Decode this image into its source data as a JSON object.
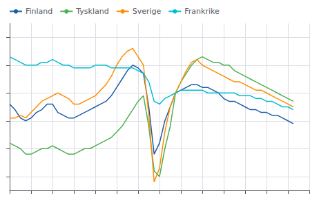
{
  "chart_data": {
    "type": "line",
    "x": [
      2000,
      2000.25,
      2000.5,
      2000.75,
      2001,
      2001.25,
      2001.5,
      2001.75,
      2002,
      2002.25,
      2002.5,
      2002.75,
      2003,
      2003.25,
      2003.5,
      2003.75,
      2004,
      2004.25,
      2004.5,
      2004.75,
      2005,
      2005.25,
      2005.5,
      2005.75,
      2006,
      2006.25,
      2006.5,
      2006.75,
      2007,
      2007.25,
      2007.5,
      2007.75,
      2008,
      2008.25,
      2008.5,
      2008.75,
      2009,
      2009.25,
      2009.5,
      2009.75,
      2010,
      2010.25,
      2010.5,
      2010.75,
      2011,
      2011.25,
      2011.5,
      2011.75,
      2012,
      2012.25,
      2012.5,
      2012.75,
      2013,
      2013.25
    ],
    "series": [
      {
        "name": "Finland",
        "color": "#1a5ca8",
        "values": [
          96,
          94,
          91,
          90,
          91,
          93,
          94,
          96,
          96,
          93,
          92,
          91,
          91,
          92,
          93,
          94,
          95,
          96,
          97,
          99,
          102,
          105,
          108,
          110,
          109,
          107,
          95,
          78,
          82,
          90,
          95,
          100,
          101,
          102,
          103,
          103,
          102,
          102,
          101,
          100,
          98,
          97,
          97,
          96,
          95,
          94,
          94,
          93,
          93,
          92,
          92,
          91,
          90,
          89
        ]
      },
      {
        "name": "Tyskland",
        "color": "#4caf50",
        "values": [
          82,
          81,
          80,
          78,
          78,
          79,
          80,
          80,
          81,
          80,
          79,
          78,
          78,
          79,
          80,
          80,
          81,
          82,
          83,
          84,
          86,
          88,
          91,
          94,
          97,
          99,
          88,
          72,
          70,
          80,
          88,
          100,
          104,
          107,
          110,
          112,
          113,
          112,
          111,
          111,
          110,
          110,
          108,
          107,
          106,
          105,
          104,
          103,
          102,
          101,
          100,
          99,
          98,
          97
        ]
      },
      {
        "name": "Sverige",
        "color": "#ff8c00",
        "values": [
          91,
          91,
          92,
          91,
          93,
          95,
          97,
          98,
          99,
          100,
          99,
          98,
          96,
          96,
          97,
          98,
          99,
          101,
          103,
          106,
          110,
          113,
          115,
          116,
          113,
          110,
          92,
          68,
          73,
          86,
          95,
          100,
          104,
          108,
          111,
          112,
          110,
          109,
          108,
          107,
          106,
          105,
          104,
          104,
          103,
          102,
          101,
          101,
          100,
          99,
          98,
          97,
          96,
          95
        ]
      },
      {
        "name": "Frankrike",
        "color": "#00bcd4",
        "values": [
          113,
          112,
          111,
          110,
          110,
          110,
          111,
          111,
          112,
          111,
          110,
          110,
          109,
          109,
          109,
          109,
          110,
          110,
          110,
          109,
          109,
          109,
          109,
          109,
          108,
          107,
          104,
          97,
          96,
          98,
          99,
          100,
          101,
          101,
          101,
          101,
          101,
          100,
          100,
          100,
          100,
          100,
          100,
          99,
          99,
          99,
          98,
          98,
          97,
          97,
          96,
          95,
          95,
          94
        ]
      }
    ],
    "xlim": [
      2000,
      2014
    ],
    "xticks": [
      2000,
      2001,
      2002,
      2003,
      2004,
      2005,
      2006,
      2007,
      2008,
      2009,
      2010,
      2011,
      2012,
      2013,
      2014
    ],
    "ylim": [
      65,
      125
    ],
    "yticks": [
      70,
      80,
      90,
      100,
      110,
      120
    ],
    "tick_labels": false,
    "grid": true,
    "legend": "upper left"
  }
}
